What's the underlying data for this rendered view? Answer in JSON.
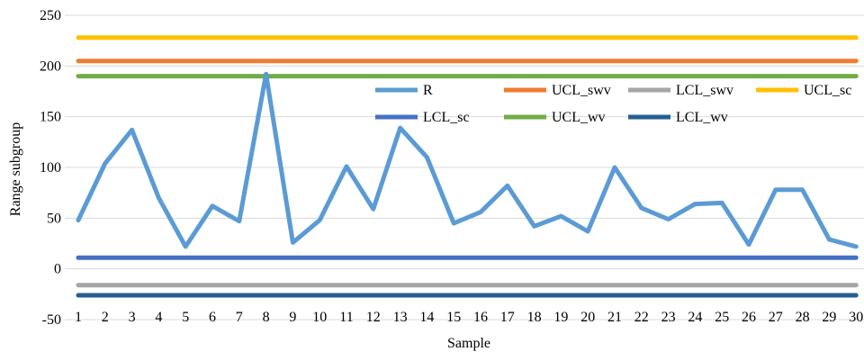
{
  "chart_data": {
    "type": "line",
    "title": "",
    "xlabel": "Sample",
    "ylabel": "Range subgroup",
    "ylim": [
      -50,
      250
    ],
    "yticks": [
      -50,
      0,
      50,
      100,
      150,
      200,
      250
    ],
    "grid": true,
    "legend_position": "top-right",
    "x": [
      1,
      2,
      3,
      4,
      5,
      6,
      7,
      8,
      9,
      10,
      11,
      12,
      13,
      14,
      15,
      16,
      17,
      18,
      19,
      20,
      21,
      22,
      23,
      24,
      25,
      26,
      27,
      28,
      29,
      30
    ],
    "series": [
      {
        "name": "R",
        "color": "#5b9bd5",
        "values": [
          48,
          104,
          137,
          70,
          22,
          62,
          47,
          192,
          26,
          48,
          101,
          59,
          139,
          110,
          45,
          56,
          82,
          42,
          52,
          37,
          100,
          60,
          49,
          64,
          65,
          24,
          78,
          78,
          29,
          22
        ]
      },
      {
        "name": "UCL_swv",
        "color": "#ed7d31",
        "values": [
          205,
          205,
          205,
          205,
          205,
          205,
          205,
          205,
          205,
          205,
          205,
          205,
          205,
          205,
          205,
          205,
          205,
          205,
          205,
          205,
          205,
          205,
          205,
          205,
          205,
          205,
          205,
          205,
          205,
          205
        ]
      },
      {
        "name": "LCL_swv",
        "color": "#a5a5a5",
        "values": [
          -16,
          -16,
          -16,
          -16,
          -16,
          -16,
          -16,
          -16,
          -16,
          -16,
          -16,
          -16,
          -16,
          -16,
          -16,
          -16,
          -16,
          -16,
          -16,
          -16,
          -16,
          -16,
          -16,
          -16,
          -16,
          -16,
          -16,
          -16,
          -16,
          -16
        ]
      },
      {
        "name": "UCL_sc",
        "color": "#ffc000",
        "values": [
          228,
          228,
          228,
          228,
          228,
          228,
          228,
          228,
          228,
          228,
          228,
          228,
          228,
          228,
          228,
          228,
          228,
          228,
          228,
          228,
          228,
          228,
          228,
          228,
          228,
          228,
          228,
          228,
          228,
          228
        ]
      },
      {
        "name": "LCL_sc",
        "color": "#4472c4",
        "values": [
          11,
          11,
          11,
          11,
          11,
          11,
          11,
          11,
          11,
          11,
          11,
          11,
          11,
          11,
          11,
          11,
          11,
          11,
          11,
          11,
          11,
          11,
          11,
          11,
          11,
          11,
          11,
          11,
          11,
          11
        ]
      },
      {
        "name": "UCL_wv",
        "color": "#70ad47",
        "values": [
          190,
          190,
          190,
          190,
          190,
          190,
          190,
          190,
          190,
          190,
          190,
          190,
          190,
          190,
          190,
          190,
          190,
          190,
          190,
          190,
          190,
          190,
          190,
          190,
          190,
          190,
          190,
          190,
          190,
          190
        ]
      },
      {
        "name": "LCL_wv",
        "color": "#255e91",
        "values": [
          -26,
          -26,
          -26,
          -26,
          -26,
          -26,
          -26,
          -26,
          -26,
          -26,
          -26,
          -26,
          -26,
          -26,
          -26,
          -26,
          -26,
          -26,
          -26,
          -26,
          -26,
          -26,
          -26,
          -26,
          -26,
          -26,
          -26,
          -26,
          -26,
          -26
        ]
      }
    ]
  }
}
